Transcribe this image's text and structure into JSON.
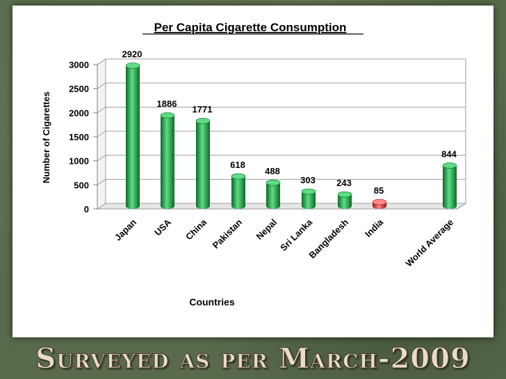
{
  "chart_data": {
    "type": "bar",
    "title": "Per Capita Cigarette Consumption",
    "xlabel": "Countries",
    "ylabel": "Number of Cigarettes",
    "ylim": [
      0,
      3000
    ],
    "yticks": [
      "0",
      "500",
      "1000",
      "1500",
      "2000",
      "2500",
      "3000"
    ],
    "categories": [
      "Japan",
      "USA",
      "China",
      "Pakistan",
      "Nepal",
      "Sri Lanka",
      "Bangladesh",
      "India",
      "World Average"
    ],
    "values": [
      2920,
      1886,
      1771,
      618,
      488,
      303,
      243,
      85,
      844
    ],
    "value_labels": [
      "2920",
      "1886",
      "1771",
      "618",
      "488",
      "303",
      "243",
      "85",
      "844"
    ],
    "highlight": [
      "green",
      "green",
      "green",
      "green",
      "green",
      "green",
      "green",
      "red",
      "green"
    ],
    "grid": true,
    "colors": {
      "green": "#0f9a3c",
      "green_dark": "#0a6a28",
      "green_light": "#5fdc84",
      "red": "#e01818",
      "red_dark": "#a00c0c",
      "red_light": "#ff8a8a"
    }
  },
  "footer": {
    "banner": "Surveyed as per March-2009"
  }
}
